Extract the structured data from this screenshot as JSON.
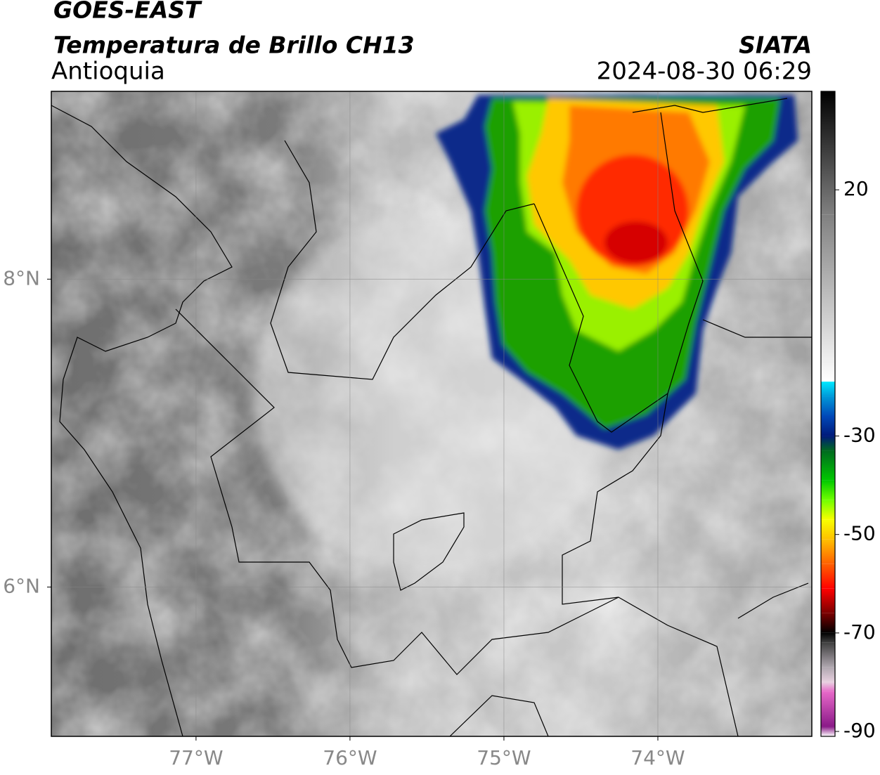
{
  "header": {
    "satellite": "GOES-EAST",
    "product": "Temperatura de Brillo CH13",
    "region": "Antioquia",
    "source": "SIATA",
    "datetime": "2024-08-30 06:29"
  },
  "map": {
    "xlim": [
      -77.94,
      -73.0
    ],
    "ylim": [
      5.03,
      9.22
    ],
    "xticks": [
      {
        "value": -77,
        "label": "77°W"
      },
      {
        "value": -76,
        "label": "76°W"
      },
      {
        "value": -75,
        "label": "75°W"
      },
      {
        "value": -74,
        "label": "74°W"
      }
    ],
    "yticks": [
      {
        "value": 6,
        "label": "6°N"
      },
      {
        "value": 8,
        "label": "8°N"
      }
    ],
    "grid": true
  },
  "colorbar": {
    "lim": [
      -91,
      40
    ],
    "ticks": [
      20,
      -30,
      -50,
      -70,
      -90
    ],
    "stops": [
      {
        "value": -91,
        "color": "#ffffff"
      },
      {
        "value": -89,
        "color": "#8a1a88"
      },
      {
        "value": -82,
        "color": "#e668c8"
      },
      {
        "value": -80,
        "color": "#e8d0e0"
      },
      {
        "value": -77,
        "color": "#b0a8b0"
      },
      {
        "value": -72,
        "color": "#404040"
      },
      {
        "value": -70,
        "color": "#000000"
      },
      {
        "value": -66,
        "color": "#7a0000"
      },
      {
        "value": -61,
        "color": "#ff0000"
      },
      {
        "value": -56,
        "color": "#ff6000"
      },
      {
        "value": -51,
        "color": "#ffc000"
      },
      {
        "value": -47,
        "color": "#f8ff00"
      },
      {
        "value": -43,
        "color": "#70ff00"
      },
      {
        "value": -39,
        "color": "#00c800"
      },
      {
        "value": -33,
        "color": "#006a20"
      },
      {
        "value": -30,
        "color": "#001a7a"
      },
      {
        "value": -26,
        "color": "#0048b8"
      },
      {
        "value": -22,
        "color": "#0098d8"
      },
      {
        "value": -19,
        "color": "#00e8ff"
      },
      {
        "value": -18.9,
        "color": "#ffffff"
      },
      {
        "value": 15,
        "color": "#808080"
      },
      {
        "value": 40,
        "color": "#000000"
      }
    ]
  }
}
